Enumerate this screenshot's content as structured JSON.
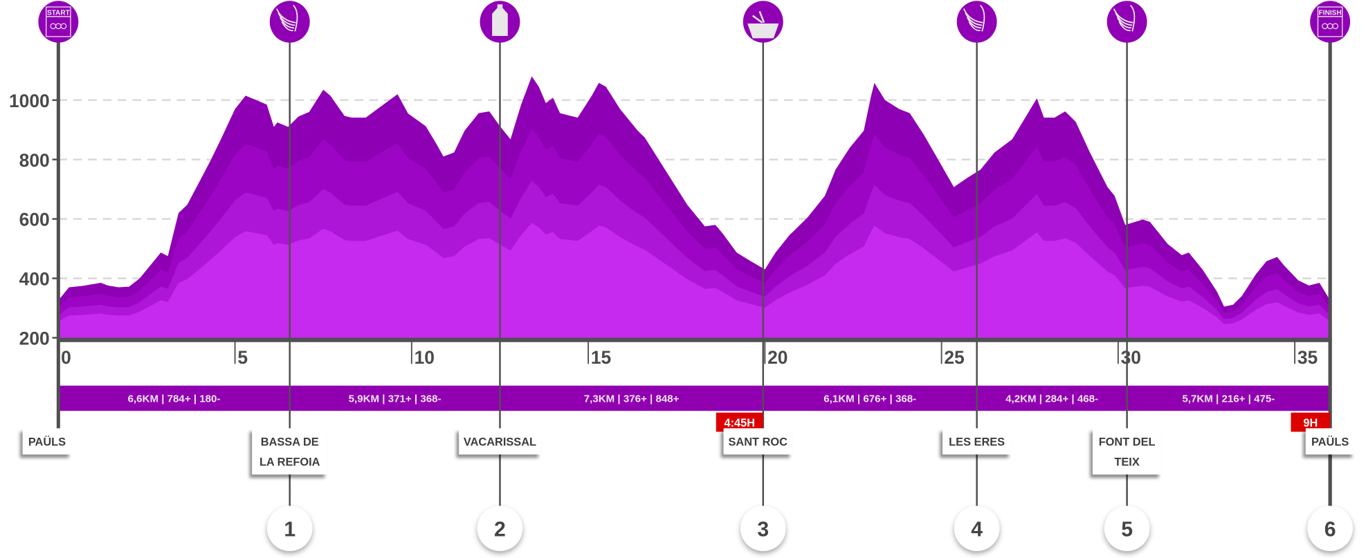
{
  "chart_data": {
    "type": "area",
    "title": "",
    "xlabel": "",
    "ylabel": "",
    "xlim": [
      0,
      36
    ],
    "ylim": [
      200,
      1150
    ],
    "grid": true,
    "y_ticks": [
      200,
      400,
      600,
      800,
      1000
    ],
    "x_ticks": [
      0,
      5,
      10,
      15,
      20,
      25,
      30,
      35
    ],
    "colors": {
      "profile_top": "#8e00b3",
      "band_2": "#9d05c4",
      "band_3": "#ad16d6",
      "band_4": "#c52aee",
      "axis": "#505050",
      "grid": "#d9d9d9",
      "segment_bar": "#9000b0",
      "time_box": "#dd0000",
      "icon_circle": "#9000b4"
    },
    "profile": [
      [
        0,
        326
      ],
      [
        0.3,
        370
      ],
      [
        0.7,
        375
      ],
      [
        1.2,
        385
      ],
      [
        1.4,
        376
      ],
      [
        1.7,
        370
      ],
      [
        2.0,
        372
      ],
      [
        2.3,
        400
      ],
      [
        2.7,
        458
      ],
      [
        2.9,
        487
      ],
      [
        3.1,
        475
      ],
      [
        3.4,
        620
      ],
      [
        3.65,
        648
      ],
      [
        4.3,
        795
      ],
      [
        4.6,
        868
      ],
      [
        5.0,
        970
      ],
      [
        5.3,
        1015
      ],
      [
        5.6,
        1000
      ],
      [
        5.9,
        985
      ],
      [
        6.1,
        910
      ],
      [
        6.2,
        925
      ],
      [
        6.5,
        910
      ],
      [
        6.8,
        945
      ],
      [
        7.1,
        960
      ],
      [
        7.5,
        1035
      ],
      [
        7.7,
        1015
      ],
      [
        8.1,
        947
      ],
      [
        8.3,
        941
      ],
      [
        8.7,
        941
      ],
      [
        9.6,
        1020
      ],
      [
        9.9,
        955
      ],
      [
        10.4,
        912
      ],
      [
        10.7,
        853
      ],
      [
        10.9,
        810
      ],
      [
        11.2,
        824
      ],
      [
        11.5,
        897
      ],
      [
        11.9,
        956
      ],
      [
        12.2,
        962
      ],
      [
        12.5,
        912
      ],
      [
        12.8,
        868
      ],
      [
        13.1,
        985
      ],
      [
        13.4,
        1080
      ],
      [
        13.6,
        1045
      ],
      [
        13.8,
        990
      ],
      [
        14.0,
        1008
      ],
      [
        14.2,
        956
      ],
      [
        14.5,
        947
      ],
      [
        14.7,
        941
      ],
      [
        15.1,
        1015
      ],
      [
        15.3,
        1058
      ],
      [
        15.5,
        1045
      ],
      [
        15.9,
        970
      ],
      [
        16.4,
        897
      ],
      [
        16.6,
        874
      ],
      [
        17.1,
        780
      ],
      [
        17.8,
        648
      ],
      [
        18.3,
        575
      ],
      [
        18.6,
        580
      ],
      [
        18.8,
        552
      ],
      [
        19.2,
        487
      ],
      [
        19.6,
        458
      ],
      [
        20.0,
        430
      ],
      [
        20.3,
        487
      ],
      [
        20.7,
        546
      ],
      [
        21.2,
        604
      ],
      [
        21.7,
        678
      ],
      [
        22.0,
        766
      ],
      [
        22.4,
        839
      ],
      [
        22.8,
        897
      ],
      [
        23.0,
        1010
      ],
      [
        23.1,
        1058
      ],
      [
        23.4,
        1000
      ],
      [
        23.8,
        970
      ],
      [
        24.1,
        956
      ],
      [
        24.5,
        883
      ],
      [
        25.0,
        780
      ],
      [
        25.35,
        707
      ],
      [
        25.7,
        736
      ],
      [
        26.1,
        766
      ],
      [
        26.5,
        824
      ],
      [
        27.0,
        868
      ],
      [
        27.3,
        927
      ],
      [
        27.7,
        1006
      ],
      [
        27.9,
        941
      ],
      [
        28.2,
        941
      ],
      [
        28.5,
        962
      ],
      [
        28.8,
        927
      ],
      [
        29.2,
        824
      ],
      [
        29.7,
        707
      ],
      [
        29.9,
        678
      ],
      [
        30.2,
        580
      ],
      [
        30.7,
        598
      ],
      [
        30.9,
        590
      ],
      [
        31.4,
        516
      ],
      [
        31.8,
        478
      ],
      [
        32.0,
        487
      ],
      [
        32.4,
        428
      ],
      [
        32.8,
        355
      ],
      [
        33.0,
        305
      ],
      [
        33.25,
        311
      ],
      [
        33.5,
        340
      ],
      [
        33.9,
        414
      ],
      [
        34.2,
        458
      ],
      [
        34.5,
        472
      ],
      [
        34.7,
        443
      ],
      [
        35.1,
        393
      ],
      [
        35.4,
        376
      ],
      [
        35.7,
        385
      ],
      [
        36,
        326
      ]
    ],
    "stations": [
      {
        "number": "",
        "km": 0,
        "name": [
          "PAÜLS"
        ],
        "icon": "start-icon",
        "icon_text": "START",
        "time": ""
      },
      {
        "number": "1",
        "km": 6.55,
        "name": [
          "BASSA DE",
          "LA REFOIA"
        ],
        "icon": "bananas-icon",
        "time": ""
      },
      {
        "number": "2",
        "km": 12.5,
        "name": [
          "VACARISSAL"
        ],
        "icon": "water-bottle-icon",
        "time": ""
      },
      {
        "number": "3",
        "km": 19.95,
        "name": [
          "SANT ROC"
        ],
        "icon": "food-bowl-icon",
        "time": "4:45H"
      },
      {
        "number": "4",
        "km": 26.0,
        "name": [
          "LES ERES"
        ],
        "icon": "bananas-icon",
        "time": ""
      },
      {
        "number": "5",
        "km": 30.25,
        "name": [
          "FONT DEL",
          "TEIX"
        ],
        "icon": "bananas-icon",
        "time": ""
      },
      {
        "number": "6",
        "km": 36,
        "name": [
          "PAÜLS"
        ],
        "icon": "finish-icon",
        "icon_text": "FINISH",
        "time": "9H"
      }
    ],
    "segments": [
      "6,6KM | 784+ | 180-",
      "5,9KM | 371+ | 368-",
      "7,3KM | 376+ | 848+",
      "6,1KM | 676+ | 368-",
      "4,2KM | 284+ | 468-",
      "5,7KM | 216+ | 475-"
    ]
  }
}
